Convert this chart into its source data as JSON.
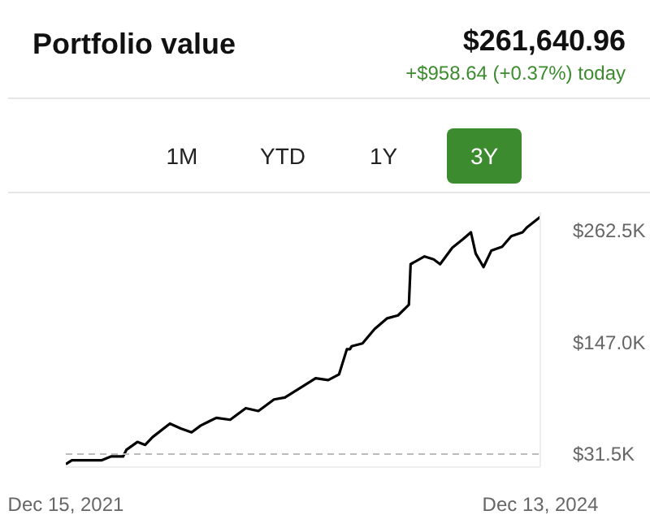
{
  "chart_data": {
    "type": "line",
    "title": "Portfolio value",
    "annotations": [
      "$261,640.96",
      "+$958.64 (+0.37%) today",
      "1M",
      "YTD",
      "1Y",
      "3Y"
    ],
    "x": [
      "2021-12-15",
      "2021-12-29",
      "2022-02-03",
      "2022-03-07",
      "2022-03-29",
      "2022-04-26",
      "2022-05-04",
      "2022-05-29",
      "2022-06-16",
      "2022-07-03",
      "2022-08-12",
      "2022-09-06",
      "2022-10-01",
      "2022-10-22",
      "2022-11-27",
      "2022-12-29",
      "2023-02-03",
      "2023-03-04",
      "2023-04-09",
      "2023-05-04",
      "2023-06-09",
      "2023-07-14",
      "2023-08-12",
      "2023-09-06",
      "2023-09-24",
      "2023-10-01",
      "2023-10-05",
      "2023-10-30",
      "2023-11-27",
      "2023-12-26",
      "2024-01-20",
      "2024-02-14",
      "2024-02-18",
      "2024-03-21",
      "2024-04-11",
      "2024-04-26",
      "2024-05-24",
      "2024-06-18",
      "2024-07-06",
      "2024-07-17",
      "2024-08-04",
      "2024-08-22",
      "2024-09-16",
      "2024-10-07",
      "2024-11-02",
      "2024-11-12",
      "2024-12-13"
    ],
    "series": [
      {
        "color": "#000000",
        "values": [
          21,
          25,
          25,
          25,
          29,
          29,
          36,
          44,
          41,
          49,
          63,
          58,
          54,
          61,
          69,
          67,
          79,
          76,
          88,
          90,
          100,
          110,
          108,
          114,
          140,
          140,
          143,
          146,
          161,
          172,
          175,
          186,
          228,
          236,
          233,
          228,
          245,
          254,
          261,
          239,
          225,
          242,
          246,
          257,
          261,
          266,
          277
        ]
      }
    ],
    "xlim": [
      "2021-12-15",
      "2024-12-13"
    ],
    "xticks": [
      {
        "value": "2021-12-15",
        "label": "Dec 15, 2021"
      },
      {
        "value": "2024-12-13",
        "label": "Dec 13, 2024"
      }
    ],
    "ylim": [
      18,
      282
    ],
    "yticks": [
      {
        "value": 31.5,
        "label": "$31.5K"
      },
      {
        "value": 147.0,
        "label": "$147.0K"
      },
      {
        "value": 262.5,
        "label": "$262.5K"
      }
    ],
    "ref_lines": [
      {
        "axis": "y",
        "value": 31.5,
        "label": null,
        "color": "#bbbbbb",
        "line_style": "dashed"
      }
    ]
  }
}
